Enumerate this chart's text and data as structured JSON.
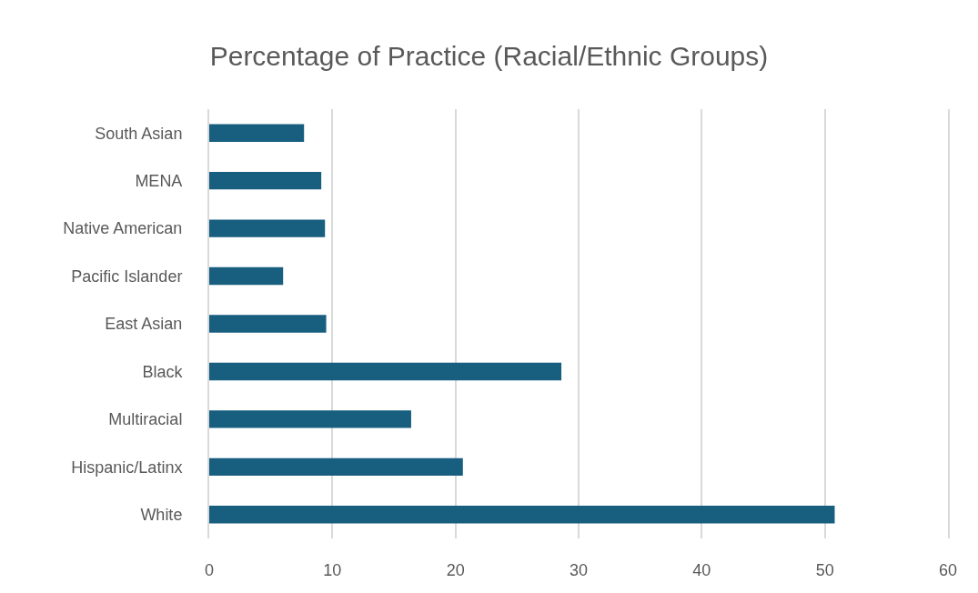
{
  "chart_data": {
    "type": "bar",
    "orientation": "horizontal",
    "title": "Percentage of Practice (Racial/Ethnic Groups)",
    "categories": [
      "South Asian",
      "MENA",
      "Native American",
      "Pacific Islander",
      "East Asian",
      "Black",
      "Multiracial",
      "Hispanic/Latinx",
      "White"
    ],
    "values": [
      7.7,
      9.1,
      9.4,
      6.0,
      9.5,
      28.6,
      16.4,
      20.6,
      50.8
    ],
    "color": "#175e7f",
    "xlim": [
      0,
      60
    ],
    "xticks": [
      0,
      10,
      20,
      30,
      40,
      50,
      60
    ],
    "grid": "x"
  }
}
